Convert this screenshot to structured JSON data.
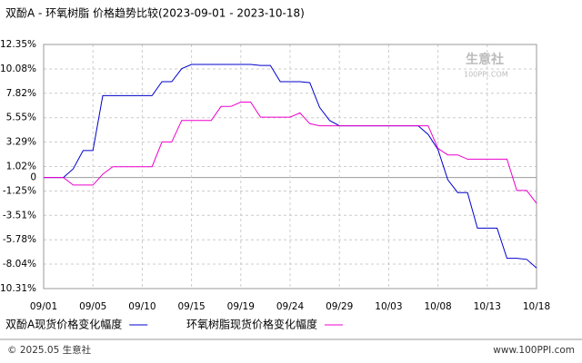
{
  "chart_data": {
    "type": "line",
    "title": "双酚A - 环氧树脂 价格趋势比较(2023-09-01 - 2023-10-18)",
    "categories": [
      "09/01",
      null,
      null,
      null,
      null,
      "09/05",
      null,
      null,
      null,
      null,
      "09/10",
      null,
      null,
      null,
      null,
      "09/15",
      null,
      null,
      null,
      null,
      "09/19",
      null,
      null,
      null,
      null,
      "09/24",
      null,
      null,
      null,
      null,
      "09/29",
      null,
      null,
      null,
      null,
      "10/03",
      null,
      null,
      null,
      null,
      "10/08",
      null,
      null,
      null,
      null,
      "10/13",
      null,
      null,
      null,
      null,
      "10/18"
    ],
    "series": [
      {
        "name": "双酚A现货价格变化幅度",
        "color": "#0000cc",
        "values": [
          0,
          0,
          0,
          0.8,
          2.5,
          2.5,
          7.6,
          7.6,
          7.6,
          7.6,
          7.6,
          7.6,
          8.9,
          8.9,
          10.1,
          10.5,
          10.5,
          10.5,
          10.5,
          10.5,
          10.5,
          10.5,
          10.4,
          10.4,
          8.9,
          8.9,
          8.9,
          8.8,
          6.5,
          5.3,
          4.8,
          4.8,
          4.8,
          4.8,
          4.8,
          4.8,
          4.8,
          4.8,
          4.8,
          4.0,
          2.6,
          -0.2,
          -1.4,
          -1.4,
          -4.7,
          -4.7,
          -4.7,
          -7.5,
          -7.5,
          -7.6,
          -8.4
        ]
      },
      {
        "name": "环氧树脂现货价格变化幅度",
        "color": "#ee00cc",
        "values": [
          0,
          0,
          0,
          -0.7,
          -0.7,
          -0.7,
          0.3,
          1.0,
          1.0,
          1.0,
          1.0,
          1.0,
          3.3,
          3.3,
          5.3,
          5.3,
          5.3,
          5.3,
          6.6,
          6.6,
          7.0,
          7.0,
          5.6,
          5.6,
          5.6,
          5.6,
          6.0,
          5.0,
          4.8,
          4.8,
          4.8,
          4.8,
          4.8,
          4.8,
          4.8,
          4.8,
          4.8,
          4.8,
          4.8,
          4.8,
          2.7,
          2.1,
          2.1,
          1.7,
          1.7,
          1.7,
          1.7,
          1.7,
          -1.2,
          -1.2,
          -2.4
        ]
      }
    ],
    "ylim": [
      -10.31,
      12.35
    ],
    "yticks": [
      {
        "value": 12.35,
        "label": "12.35%"
      },
      {
        "value": 10.08,
        "label": "10.08%"
      },
      {
        "value": 7.82,
        "label": "7.82%"
      },
      {
        "value": 5.55,
        "label": "5.55%"
      },
      {
        "value": 3.29,
        "label": "3.29%"
      },
      {
        "value": 1.02,
        "label": "1.02%"
      },
      0,
      {
        "value": -1.25,
        "label": "-1.25%"
      },
      {
        "value": -3.51,
        "label": "-3.51%"
      },
      {
        "value": -5.78,
        "label": "-5.78%"
      },
      {
        "value": -8.04,
        "label": "-8.04%"
      },
      {
        "value": -10.31,
        "label": "-10.31%"
      }
    ],
    "grid": true,
    "watermark": {
      "name": "生意社",
      "site": "100PPI.COM"
    },
    "footer": {
      "left": "© 2025.05 生意社",
      "right": "www.100PPI.com"
    }
  }
}
